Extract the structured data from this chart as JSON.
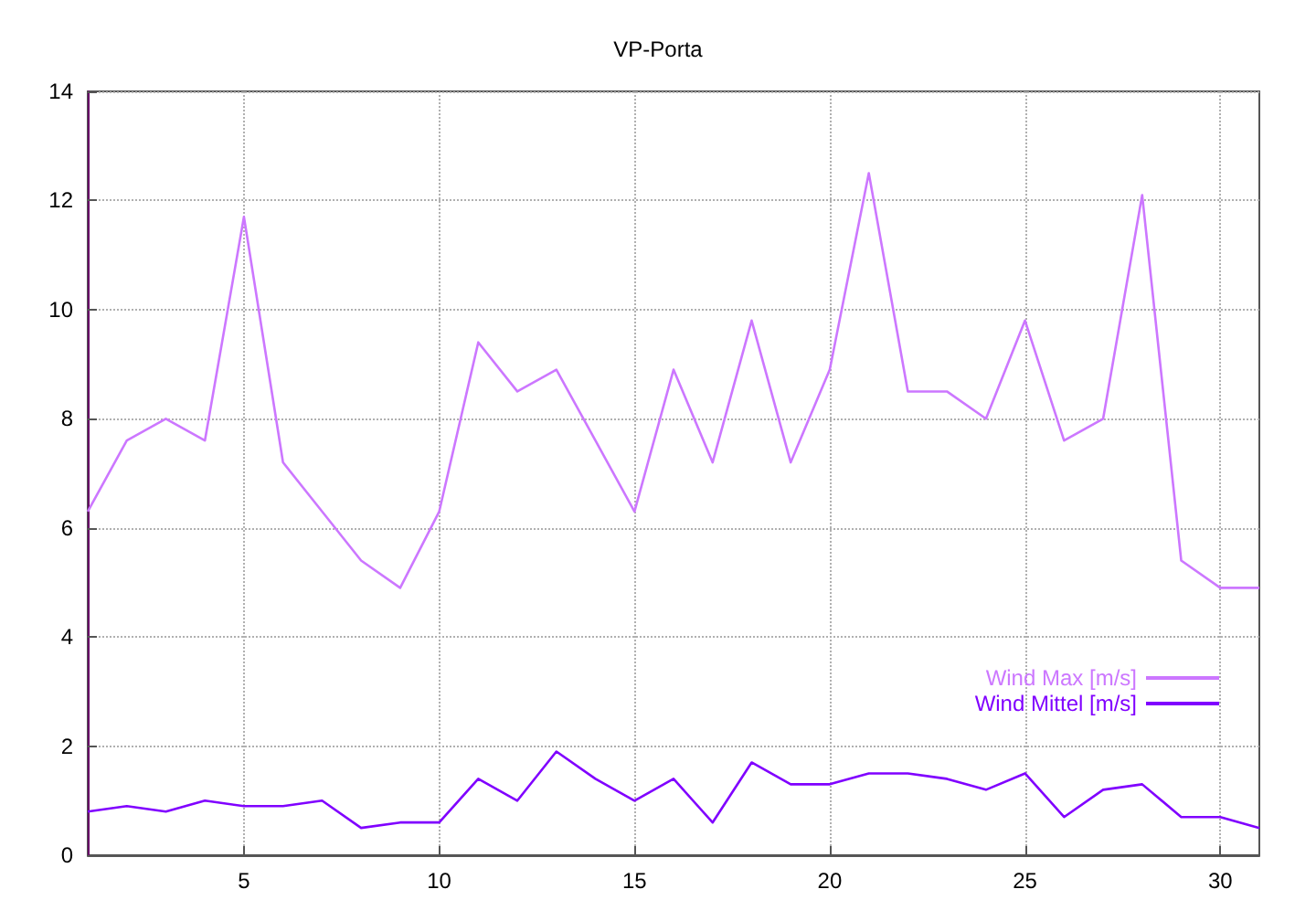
{
  "chart_data": {
    "type": "line",
    "title": "VP-Porta",
    "x": [
      1,
      2,
      3,
      4,
      5,
      6,
      7,
      8,
      9,
      10,
      11,
      12,
      13,
      14,
      15,
      16,
      17,
      18,
      19,
      20,
      21,
      22,
      23,
      24,
      25,
      26,
      27,
      28,
      29,
      30,
      31
    ],
    "series": [
      {
        "name": "Wind Max [m/s]",
        "color": "#cc77ff",
        "values": [
          6.3,
          7.6,
          8.0,
          7.6,
          11.7,
          7.2,
          6.3,
          5.4,
          4.9,
          6.3,
          9.4,
          8.5,
          8.9,
          7.6,
          6.3,
          8.9,
          7.2,
          9.8,
          7.2,
          8.9,
          12.5,
          8.5,
          8.5,
          8.0,
          9.8,
          7.6,
          8.0,
          12.1,
          5.4,
          4.9,
          4.9
        ]
      },
      {
        "name": "Wind Mittel [m/s]",
        "color": "#8000ff",
        "values": [
          0.8,
          0.9,
          0.8,
          1.0,
          0.9,
          0.9,
          1.0,
          0.5,
          0.6,
          0.6,
          1.4,
          1.0,
          1.9,
          1.4,
          1.0,
          1.4,
          0.6,
          1.7,
          1.3,
          1.3,
          1.5,
          1.5,
          1.4,
          1.2,
          1.5,
          0.7,
          1.2,
          1.3,
          0.7,
          0.7,
          0.5
        ]
      }
    ],
    "xlim": [
      1,
      31
    ],
    "xticks": [
      5,
      10,
      15,
      20,
      25,
      30
    ],
    "ylim": [
      0,
      14
    ],
    "yticks": [
      0,
      2,
      4,
      6,
      8,
      10,
      12,
      14
    ],
    "grid": true,
    "legend": "bottom right",
    "marker": "none",
    "line_style": "solid"
  }
}
